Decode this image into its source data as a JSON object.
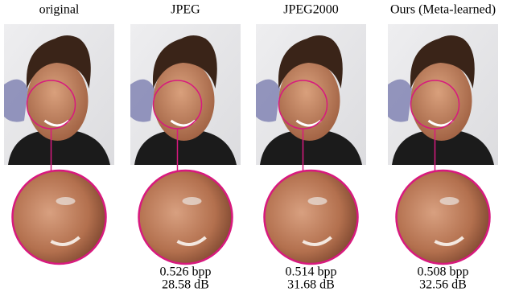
{
  "figure": {
    "panels": [
      {
        "title": "original"
      },
      {
        "title": "JPEG",
        "bpp": "0.526 bpp",
        "psnr": "28.58 dB"
      },
      {
        "title": "JPEG2000",
        "bpp": "0.514 bpp",
        "psnr": "31.68 dB"
      },
      {
        "title": "Ours (Meta-learned)",
        "bpp": "0.508 bpp",
        "psnr": "32.56 dB"
      }
    ]
  }
}
